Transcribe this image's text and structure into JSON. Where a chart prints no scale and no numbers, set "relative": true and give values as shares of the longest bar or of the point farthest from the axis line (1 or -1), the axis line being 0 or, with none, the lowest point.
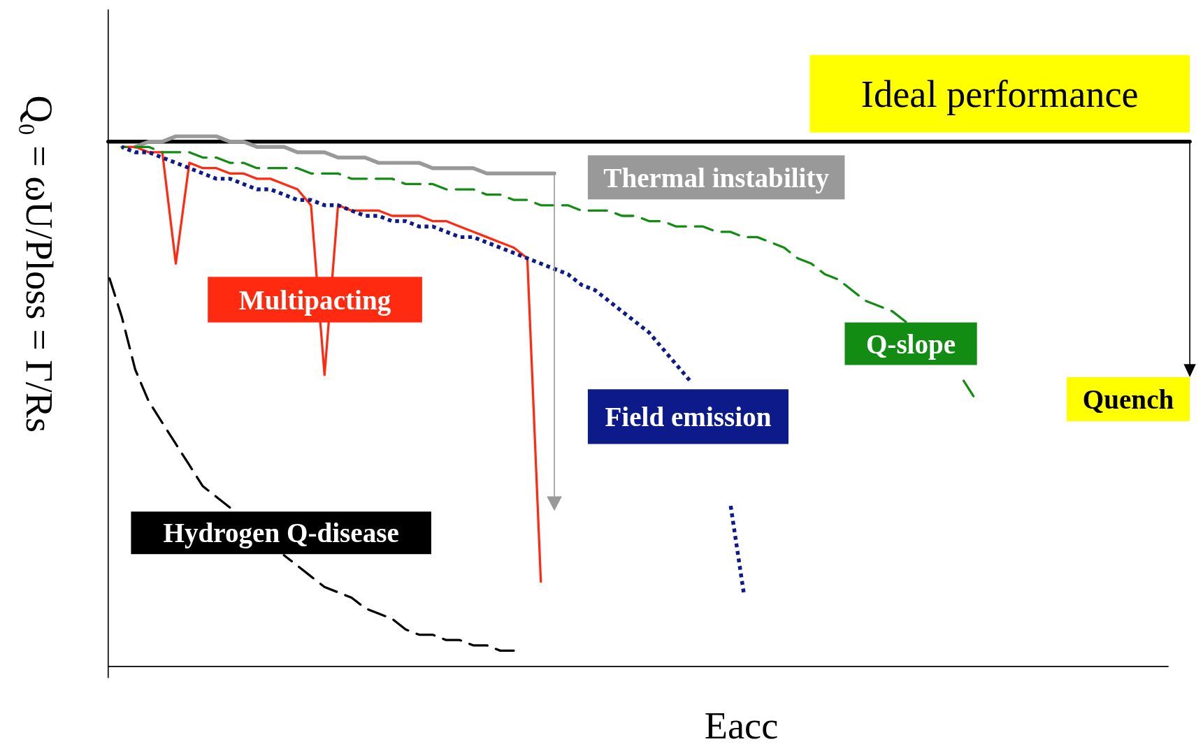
{
  "chart_data": {
    "type": "line",
    "relative": true,
    "xlabel": "Eacc",
    "ylabel": "Q₀ = ωU/Ploss = Γ/Rs",
    "categories": [
      null,
      null,
      null,
      null,
      null,
      null,
      null,
      null,
      null,
      null,
      null,
      null,
      null,
      null,
      null,
      null,
      null,
      null,
      null,
      null,
      null,
      null,
      null,
      null,
      null,
      null,
      null,
      null,
      null,
      null,
      null,
      null,
      null,
      null,
      null,
      null,
      null,
      null,
      null,
      null,
      null,
      null,
      null,
      null,
      null,
      null,
      null,
      null,
      null,
      null,
      null,
      null,
      null,
      null,
      null,
      null,
      null,
      null,
      null,
      null,
      null,
      null,
      null,
      null,
      null,
      null,
      null,
      null,
      null,
      null,
      null,
      null,
      null,
      null,
      null,
      null,
      null,
      null,
      null,
      null,
      null
    ],
    "series": [
      {
        "name": "Ideal performance",
        "color": "#000000",
        "line_style": "solid",
        "values": [
          0.99,
          0.99,
          0.99,
          0.99,
          0.99,
          0.99,
          0.99,
          0.99,
          0.99,
          0.99,
          0.99,
          0.99,
          0.99,
          0.99,
          0.99,
          0.99,
          0.99,
          0.99,
          0.99,
          0.99,
          0.99,
          0.99,
          0.99,
          0.99,
          0.99,
          0.99,
          0.99,
          0.99,
          0.99,
          0.99,
          0.99,
          0.99,
          0.99,
          0.99,
          0.99,
          0.99,
          0.99,
          0.99,
          0.99,
          0.99,
          0.99,
          0.99,
          0.99,
          0.99,
          0.99,
          0.99,
          0.99,
          0.99,
          0.99,
          0.99,
          0.99,
          0.99,
          0.99,
          0.99,
          0.99,
          0.99,
          0.99,
          0.99,
          0.99,
          0.99,
          0.99,
          0.99,
          0.99,
          0.99,
          0.99,
          0.99,
          0.99,
          0.99,
          0.99,
          0.99,
          0.99,
          0.99,
          0.99,
          0.99,
          0.99,
          0.99,
          0.99,
          0.99,
          0.99,
          0.99,
          0.99
        ]
      },
      {
        "name": "Thermal instability",
        "color": "#999999",
        "line_style": "solid",
        "values": [
          null,
          null,
          0.98,
          0.99,
          0.99,
          1.0,
          1.0,
          1.0,
          1.0,
          0.99,
          0.99,
          0.98,
          0.98,
          0.98,
          0.97,
          0.97,
          0.97,
          0.96,
          0.96,
          0.96,
          0.95,
          0.95,
          0.95,
          0.95,
          0.94,
          0.94,
          0.94,
          0.94,
          0.93,
          0.93,
          0.93,
          0.93,
          0.93,
          0.93,
          null,
          null,
          null,
          null,
          null,
          null,
          null,
          null,
          null,
          null,
          null,
          null,
          null,
          null,
          null,
          null,
          null,
          null,
          null,
          null,
          null,
          null,
          null,
          null,
          null,
          null,
          null,
          null,
          null,
          null,
          null,
          null,
          null,
          null,
          null,
          null,
          null,
          null,
          null,
          null,
          null,
          null,
          null,
          null,
          null,
          null,
          null
        ]
      },
      {
        "name": "Multipacting",
        "color": "#ff2a10",
        "line_style": "solid",
        "values": [
          null,
          0.98,
          0.98,
          0.97,
          0.97,
          0.76,
          0.95,
          0.94,
          0.94,
          0.93,
          0.93,
          0.92,
          0.92,
          0.91,
          0.9,
          0.87,
          0.55,
          0.87,
          0.86,
          0.86,
          0.86,
          0.85,
          0.85,
          0.85,
          0.84,
          0.84,
          0.83,
          0.82,
          0.81,
          0.8,
          0.79,
          0.77,
          0.16,
          null,
          null,
          null,
          null,
          null,
          null,
          null,
          null,
          null,
          null,
          null,
          null,
          null,
          null,
          null,
          null,
          null,
          null,
          null,
          null,
          null,
          null,
          null,
          null,
          null,
          null,
          null,
          null,
          null,
          null,
          null,
          null,
          null,
          null,
          null,
          null,
          null,
          null,
          null,
          null,
          null,
          null,
          null,
          null,
          null,
          null,
          null,
          null
        ]
      },
      {
        "name": "Q-slope",
        "color": "#138c13",
        "line_style": "dashed",
        "values": [
          null,
          0.98,
          0.98,
          0.98,
          0.97,
          0.97,
          0.97,
          0.96,
          0.96,
          0.95,
          0.95,
          0.94,
          0.94,
          0.94,
          0.94,
          0.93,
          0.93,
          0.93,
          0.92,
          0.92,
          0.92,
          0.92,
          0.91,
          0.91,
          0.91,
          0.9,
          0.9,
          0.9,
          0.89,
          0.89,
          0.88,
          0.88,
          0.87,
          0.87,
          0.87,
          0.86,
          0.86,
          0.86,
          0.85,
          0.85,
          0.84,
          0.84,
          0.83,
          0.83,
          0.83,
          0.82,
          0.82,
          0.81,
          0.81,
          0.8,
          0.79,
          0.77,
          0.76,
          0.74,
          0.73,
          0.71,
          0.69,
          0.68,
          0.67,
          0.65,
          null,
          null,
          null,
          0.55,
          0.51,
          null,
          null,
          null,
          null,
          null,
          null,
          null,
          null,
          null,
          null,
          null,
          null,
          null,
          null,
          null,
          null
        ]
      },
      {
        "name": "Field emission",
        "color": "#0d1a8a",
        "line_style": "dotted",
        "values": [
          null,
          0.98,
          0.97,
          0.97,
          0.96,
          0.95,
          0.94,
          0.93,
          0.92,
          0.92,
          0.91,
          0.9,
          0.9,
          0.89,
          0.88,
          0.88,
          0.87,
          0.87,
          0.86,
          0.85,
          0.85,
          0.84,
          0.84,
          0.83,
          0.83,
          0.82,
          0.81,
          0.81,
          0.8,
          0.79,
          0.78,
          0.77,
          0.76,
          0.75,
          0.74,
          0.72,
          0.71,
          0.69,
          0.67,
          0.65,
          0.63,
          0.6,
          0.57,
          0.54,
          null,
          null,
          0.31,
          0.14,
          null,
          null,
          null,
          null,
          null,
          null,
          null,
          null,
          null,
          null,
          null,
          null,
          null,
          null,
          null,
          null,
          null,
          null,
          null,
          null,
          null,
          null,
          null,
          null,
          null,
          null,
          null,
          null,
          null,
          null,
          null,
          null,
          null
        ]
      },
      {
        "name": "Hydrogen Q-disease",
        "color": "#000000",
        "line_style": "dashed",
        "values": [
          0.74,
          0.66,
          0.56,
          0.5,
          0.46,
          0.42,
          0.38,
          0.34,
          0.32,
          0.3,
          null,
          null,
          null,
          0.21,
          0.19,
          0.17,
          0.15,
          0.14,
          0.13,
          0.11,
          0.1,
          0.09,
          0.07,
          0.06,
          0.06,
          0.05,
          0.05,
          0.04,
          0.04,
          0.03,
          0.03,
          null,
          null,
          null,
          null,
          null,
          null,
          null,
          null,
          null,
          null,
          null,
          null,
          null,
          null,
          null,
          null,
          null,
          null,
          null,
          null,
          null,
          null,
          null,
          null,
          null,
          null,
          null,
          null,
          null,
          null,
          null,
          null,
          null,
          null,
          null,
          null,
          null,
          null,
          null,
          null,
          null,
          null,
          null,
          null,
          null,
          null,
          null,
          null,
          null,
          null
        ]
      }
    ],
    "annotations": [
      "Quench"
    ]
  }
}
